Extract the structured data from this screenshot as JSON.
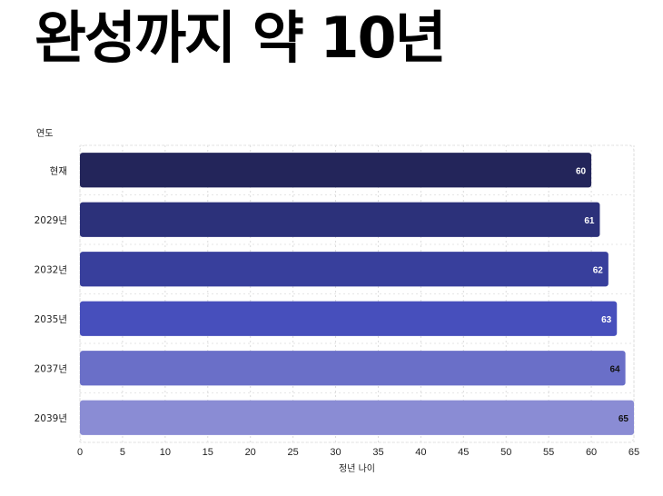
{
  "headline": "완성까지 약 10년",
  "chart_data": {
    "type": "bar",
    "orientation": "horizontal",
    "title": "",
    "ylabel": "연도",
    "xlabel": "정년 나이",
    "categories": [
      "현재",
      "2029년",
      "2032년",
      "2035년",
      "2037년",
      "2039년"
    ],
    "values": [
      60,
      61,
      62,
      63,
      64,
      65
    ],
    "xlim": [
      0,
      65
    ],
    "xticks": [
      0,
      5,
      10,
      15,
      20,
      25,
      30,
      35,
      40,
      45,
      50,
      55,
      60,
      65
    ],
    "grid": true,
    "bar_colors": [
      "#23255a",
      "#2c317a",
      "#383f9c",
      "#474fbc",
      "#6a6fc8",
      "#8a8cd4"
    ],
    "label_colors": [
      "#ffffff",
      "#ffffff",
      "#ffffff",
      "#ffffff",
      "#111111",
      "#111111"
    ]
  }
}
